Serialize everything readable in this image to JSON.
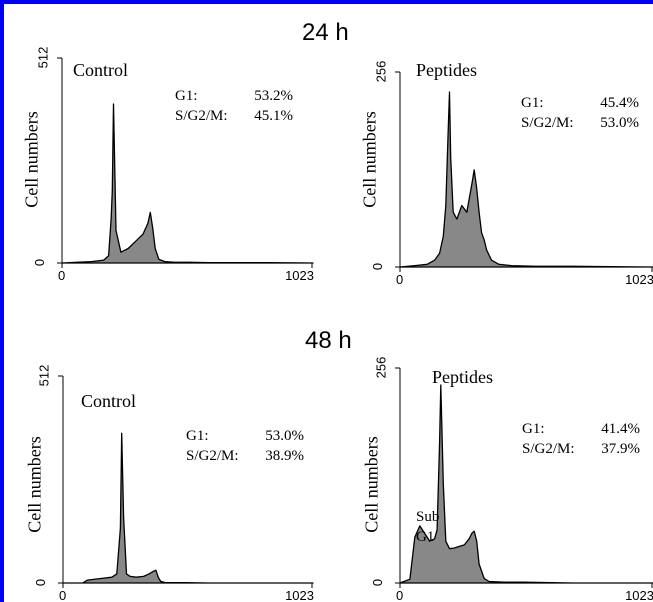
{
  "frame": {
    "border_color": "#0000ee"
  },
  "fill_color": "#888888",
  "time_points": [
    {
      "label": "24 h"
    },
    {
      "label": "48 h"
    }
  ],
  "chart_data": [
    {
      "type": "area",
      "time_point": "24 h",
      "sample": "Control",
      "ylabel": "Cell numbers",
      "xlim": [
        0,
        1023
      ],
      "ylim": [
        0,
        512
      ],
      "x_ticks": [
        "0",
        "1023"
      ],
      "y_ticks": [
        "0",
        "512"
      ],
      "stats": [
        {
          "label": "G1:",
          "value": "53.2%"
        },
        {
          "label": "S/G2/M:",
          "value": "45.1%"
        }
      ],
      "annotations": [],
      "x": [
        0,
        60,
        120,
        170,
        190,
        200,
        205,
        210,
        220,
        240,
        270,
        300,
        330,
        350,
        360,
        370,
        380,
        395,
        420,
        460,
        520,
        600,
        700,
        850,
        1023
      ],
      "y": [
        0,
        2,
        4,
        8,
        20,
        120,
        200,
        440,
        90,
        30,
        40,
        60,
        80,
        110,
        140,
        95,
        40,
        10,
        4,
        2,
        2,
        1,
        1,
        1,
        0
      ]
    },
    {
      "type": "area",
      "time_point": "24 h",
      "sample": "Peptides",
      "ylabel": "Cell numbers",
      "xlim": [
        0,
        1023
      ],
      "ylim": [
        0,
        256
      ],
      "x_ticks": [
        "0",
        "1023"
      ],
      "y_ticks": [
        "0",
        "256"
      ],
      "stats": [
        {
          "label": "G1:",
          "value": "45.4%"
        },
        {
          "label": "S/G2/M:",
          "value": "53.0%"
        }
      ],
      "annotations": [],
      "x": [
        0,
        60,
        110,
        140,
        160,
        175,
        185,
        195,
        200,
        205,
        215,
        230,
        250,
        270,
        290,
        300,
        310,
        320,
        330,
        340,
        350,
        370,
        400,
        450,
        550,
        700,
        1023
      ],
      "y": [
        0,
        2,
        4,
        10,
        20,
        45,
        90,
        200,
        256,
        160,
        80,
        70,
        90,
        80,
        120,
        142,
        115,
        80,
        50,
        40,
        25,
        10,
        4,
        2,
        1,
        1,
        0
      ]
    },
    {
      "type": "area",
      "time_point": "48 h",
      "sample": "Control",
      "ylabel": "Cell numbers",
      "xlim": [
        0,
        1023
      ],
      "ylim": [
        0,
        512
      ],
      "x_ticks": [
        "0",
        "1023"
      ],
      "y_ticks": [
        "0",
        "512"
      ],
      "stats": [
        {
          "label": "G1:",
          "value": "53.0%"
        },
        {
          "label": "S/G2/M:",
          "value": "38.9%"
        }
      ],
      "annotations": [],
      "x": [
        0,
        40,
        80,
        100,
        150,
        200,
        220,
        235,
        240,
        248,
        260,
        275,
        300,
        330,
        350,
        370,
        380,
        390,
        400,
        420,
        500,
        600,
        800,
        1023
      ],
      "y": [
        0,
        0,
        0,
        8,
        12,
        16,
        25,
        150,
        410,
        180,
        25,
        18,
        16,
        18,
        24,
        32,
        35,
        15,
        4,
        1,
        1,
        0,
        0,
        0
      ]
    },
    {
      "type": "area",
      "time_point": "48 h",
      "sample": "Peptides",
      "ylabel": "Cell numbers",
      "xlim": [
        0,
        1023
      ],
      "ylim": [
        0,
        256
      ],
      "x_ticks": [
        "0",
        "1023"
      ],
      "y_ticks": [
        "0",
        "256"
      ],
      "stats": [
        {
          "label": "G1:",
          "value": "41.4%"
        },
        {
          "label": "S/G2/M:",
          "value": "37.9%"
        }
      ],
      "annotations": [
        {
          "lines": [
            "Sub",
            "G1"
          ]
        }
      ],
      "x": [
        0,
        40,
        60,
        80,
        100,
        120,
        140,
        150,
        160,
        165,
        175,
        185,
        200,
        220,
        240,
        260,
        280,
        290,
        300,
        310,
        320,
        340,
        360,
        420,
        500,
        700,
        1023
      ],
      "y": [
        0,
        5,
        60,
        75,
        65,
        55,
        58,
        70,
        185,
        260,
        130,
        55,
        45,
        46,
        48,
        50,
        58,
        65,
        68,
        55,
        25,
        6,
        2,
        1,
        1,
        0,
        0
      ]
    }
  ]
}
